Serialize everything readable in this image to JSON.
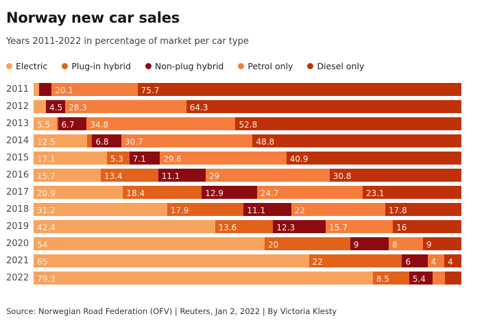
{
  "header": {
    "title": "Norway new car sales",
    "subtitle": "Years 2011-2022 in percentage of market per car type"
  },
  "legend": [
    {
      "name": "electric",
      "label": "Electric",
      "color": "#F7A35E"
    },
    {
      "name": "plugin-hybrid",
      "label": "Plug-in hybrid",
      "color": "#E2611B"
    },
    {
      "name": "nonplug-hybrid",
      "label": "Non-plug hybrid",
      "color": "#8C0B10"
    },
    {
      "name": "petrol-only",
      "label": "Petrol only",
      "color": "#F57E3D"
    },
    {
      "name": "diesel-only",
      "label": "Diesel only",
      "color": "#BF3209"
    }
  ],
  "chart_data": {
    "type": "bar",
    "stacked": true,
    "orientation": "horizontal",
    "unit": "percent of market",
    "series_names": [
      "Electric",
      "Plug-in hybrid",
      "Non-plug hybrid",
      "Petrol only",
      "Diesel only"
    ],
    "colors": [
      "#F7A35E",
      "#E2611B",
      "#8C0B10",
      "#F57E3D",
      "#BF3209"
    ],
    "label_color": "#fbefe4",
    "rows": [
      {
        "year": "2011",
        "values": [
          1.3,
          0,
          2.9,
          20.1,
          75.7
        ],
        "labels": [
          "",
          "",
          "",
          "20.1",
          "75.7"
        ]
      },
      {
        "year": "2012",
        "values": [
          2.9,
          0,
          4.5,
          28.3,
          64.3
        ],
        "labels": [
          "",
          "",
          "4.5",
          "28.3",
          "64.3"
        ]
      },
      {
        "year": "2013",
        "values": [
          5.5,
          0.2,
          6.7,
          34.8,
          52.8
        ],
        "labels": [
          "5.5",
          "",
          "6.7",
          "34.8",
          "52.8"
        ]
      },
      {
        "year": "2014",
        "values": [
          12.5,
          1.2,
          6.8,
          30.7,
          48.8
        ],
        "labels": [
          "12.5",
          "",
          "6.8",
          "30.7",
          "48.8"
        ]
      },
      {
        "year": "2015",
        "values": [
          17.1,
          5.3,
          7.1,
          29.6,
          40.9
        ],
        "labels": [
          "17.1",
          "5.3",
          "7.1",
          "29.6",
          "40.9"
        ]
      },
      {
        "year": "2016",
        "values": [
          15.7,
          13.4,
          11.1,
          29,
          30.8
        ],
        "labels": [
          "15.7",
          "13.4",
          "11.1",
          "29",
          "30.8"
        ]
      },
      {
        "year": "2017",
        "values": [
          20.9,
          18.4,
          12.9,
          24.7,
          23.1
        ],
        "labels": [
          "20.9",
          "18.4",
          "12.9",
          "24.7",
          "23.1"
        ]
      },
      {
        "year": "2018",
        "values": [
          31.2,
          17.9,
          11.1,
          22,
          17.8
        ],
        "labels": [
          "31.2",
          "17.9",
          "11.1",
          "22",
          "17.8"
        ]
      },
      {
        "year": "2019",
        "values": [
          42.4,
          13.6,
          12.3,
          15.7,
          16
        ],
        "labels": [
          "42.4",
          "13.6",
          "12.3",
          "15.7",
          "16"
        ]
      },
      {
        "year": "2020",
        "values": [
          54,
          20,
          9,
          8,
          9
        ],
        "labels": [
          "54",
          "20",
          "9",
          "8",
          "9"
        ]
      },
      {
        "year": "2021",
        "values": [
          65,
          22,
          6,
          4,
          4
        ],
        "labels": [
          "65",
          "22",
          "6",
          "4",
          "4"
        ]
      },
      {
        "year": "2022",
        "values": [
          79.3,
          8.5,
          5.4,
          2.9,
          3.9
        ],
        "labels": [
          "79.3",
          "8.5",
          "5.4",
          "",
          ""
        ]
      }
    ]
  },
  "footer": {
    "source": "Source: Norwegian Road Federation (OFV) | Reuters, Jan 2, 2022 | By Victoria Klesty"
  }
}
